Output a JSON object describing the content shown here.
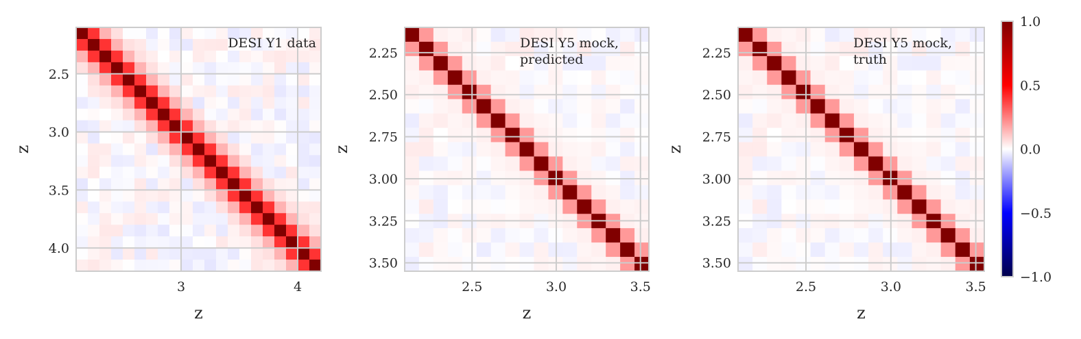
{
  "chart_data": [
    {
      "type": "heatmap",
      "title": "DESI Y1 data",
      "title_lines": [
        "DESI Y1 data"
      ],
      "xlabel": "z",
      "ylabel": "z",
      "z_range": [
        2.1,
        4.2
      ],
      "bins": 21,
      "xticks": [
        3,
        4
      ],
      "xtick_labels": [
        "3",
        "4"
      ],
      "yticks": [
        2.5,
        3.0,
        3.5,
        4.0
      ],
      "ytick_labels": [
        "2.5",
        "3.0",
        "3.5",
        "4.0"
      ],
      "grid": true,
      "diagonal": 1.0,
      "off_diagonal_1": 0.4,
      "off_diagonal_2": 0.15,
      "off_diagonal_3": 0.06,
      "background_correlation_range": [
        -0.05,
        0.05
      ]
    },
    {
      "type": "heatmap",
      "title": "DESI Y5 mock, predicted",
      "title_lines": [
        "DESI Y5 mock,",
        "predicted"
      ],
      "xlabel": "z",
      "ylabel": "z",
      "z_range": [
        2.1,
        3.55
      ],
      "bins": 17,
      "xticks": [
        2.5,
        3.0,
        3.5
      ],
      "xtick_labels": [
        "2.5",
        "3.0",
        "3.5"
      ],
      "yticks": [
        2.25,
        2.5,
        2.75,
        3.0,
        3.25,
        3.5
      ],
      "ytick_labels": [
        "2.25",
        "2.50",
        "2.75",
        "3.00",
        "3.25",
        "3.50"
      ],
      "grid": true,
      "diagonal": 1.0,
      "off_diagonal_1": 0.2,
      "off_diagonal_2": 0.03,
      "off_diagonal_3": 0.02,
      "background_correlation_range": [
        -0.04,
        0.04
      ]
    },
    {
      "type": "heatmap",
      "title": "DESI Y5 mock, truth",
      "title_lines": [
        "DESI Y5 mock,",
        "truth"
      ],
      "xlabel": "z",
      "ylabel": "z",
      "z_range": [
        2.1,
        3.55
      ],
      "bins": 17,
      "xticks": [
        2.5,
        3.0,
        3.5
      ],
      "xtick_labels": [
        "2.5",
        "3.0",
        "3.5"
      ],
      "yticks": [
        2.25,
        2.5,
        2.75,
        3.0,
        3.25,
        3.5
      ],
      "ytick_labels": [
        "2.25",
        "2.50",
        "2.75",
        "3.00",
        "3.25",
        "3.50"
      ],
      "grid": true,
      "diagonal": 1.0,
      "off_diagonal_1": 0.2,
      "off_diagonal_2": 0.03,
      "off_diagonal_3": 0.02,
      "background_correlation_range": [
        -0.04,
        0.04
      ]
    }
  ],
  "colorbar": {
    "colormap": "seismic",
    "range": [
      -1.0,
      1.0
    ],
    "ticks": [
      1.0,
      0.5,
      0.0,
      -0.5,
      -1.0
    ],
    "tick_labels": [
      "1.0",
      "0.5",
      "0.0",
      "−0.5",
      "−1.0"
    ],
    "colors": {
      "min": "#00004c",
      "low": "#0000ff",
      "mid": "#ffffff",
      "high": "#ff0000",
      "max": "#800000"
    }
  },
  "styles": {
    "grid_color": "#cccccc",
    "frame_color": "#cccccc",
    "text_color": "#262626"
  }
}
